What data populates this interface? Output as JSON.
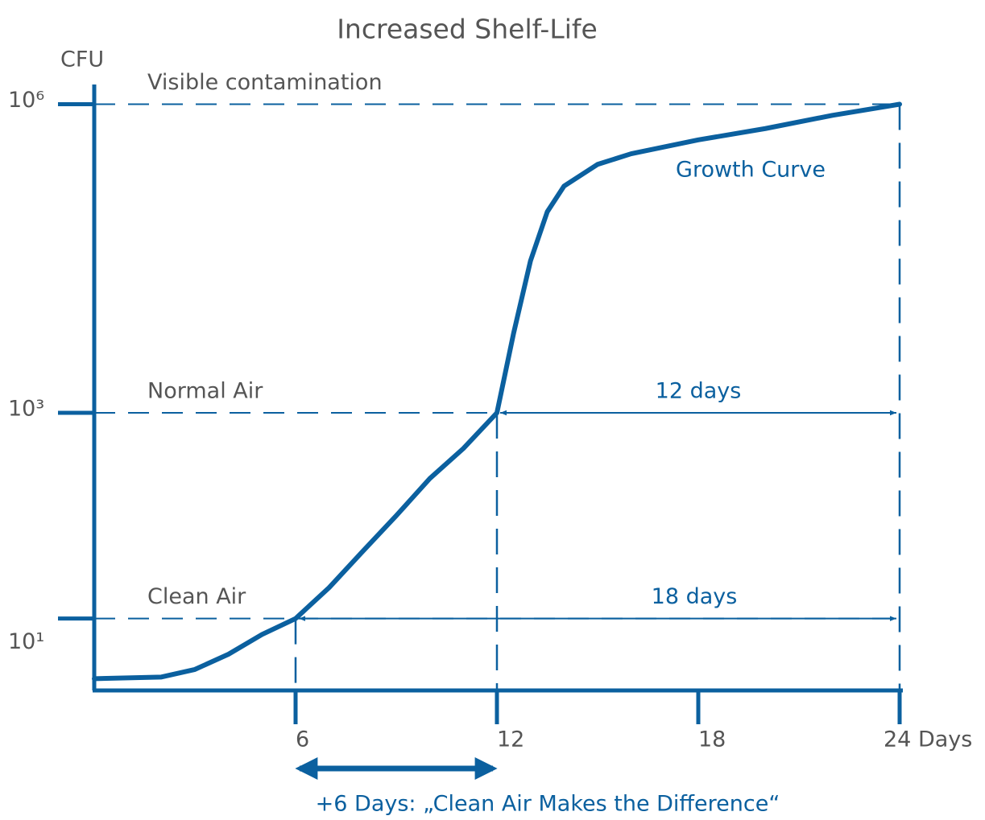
{
  "chart_data": {
    "type": "line",
    "title": "Increased Shelf-Life",
    "y_label": "CFU",
    "log_y": true,
    "color": "#0b609f",
    "x": [
      0,
      2,
      3,
      4,
      5,
      6,
      7,
      8,
      9,
      10,
      11,
      12,
      12.5,
      13,
      13.5,
      14,
      15,
      16,
      18,
      20,
      22,
      24
    ],
    "series": [
      {
        "name": "Growth Curve",
        "color": "#0b609f",
        "values": [
          2.6,
          2.7,
          3.2,
          4.5,
          7,
          10,
          20,
          45,
          100,
          230,
          450,
          1000,
          6000,
          30000,
          90000,
          160000,
          260000,
          330000,
          450000,
          580000,
          780000,
          1000000
        ]
      }
    ],
    "xlim": [
      0,
      24
    ],
    "ylim": [
      2,
      1500000
    ],
    "xticks": [
      6,
      12,
      18,
      {
        "value": 24,
        "label": "24 Days"
      }
    ],
    "yticks": [
      {
        "value": 10,
        "label": "10¹"
      },
      {
        "value": 1000,
        "label": "10³"
      },
      {
        "value": 1000000,
        "label": "10⁶"
      }
    ],
    "thresholds": [
      {
        "label": "Visible contamination",
        "value": 1000000,
        "day": 24
      },
      {
        "label": "Normal Air",
        "value": 1000,
        "day": 12
      },
      {
        "label": "Clean Air",
        "value": 10,
        "day": 6
      }
    ],
    "spans": [
      {
        "label": "12 days",
        "from": 12,
        "to": 24,
        "level": 1000
      },
      {
        "label": "18 days",
        "from": 6,
        "to": 24,
        "level": 10
      }
    ],
    "callout": {
      "label": "+6 Days:  „Clean Air Makes the Difference“",
      "from": 6,
      "to": 12
    }
  }
}
